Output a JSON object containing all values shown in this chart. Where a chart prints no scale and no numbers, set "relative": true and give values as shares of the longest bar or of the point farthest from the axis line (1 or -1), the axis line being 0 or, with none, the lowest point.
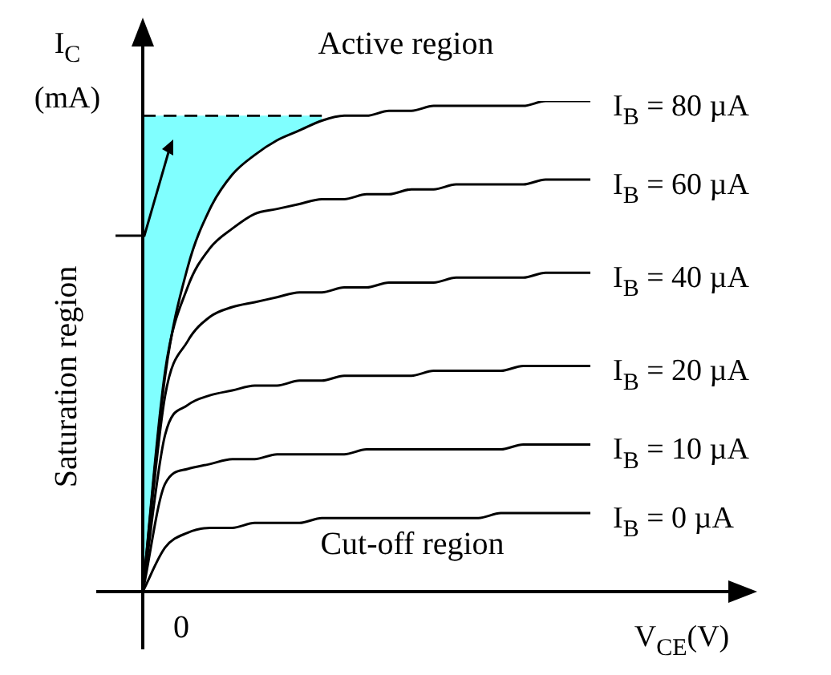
{
  "chart_data": {
    "type": "line",
    "relative": true,
    "xlabel": "V$_{CE}$(V)",
    "ylabel": "I$_{C}$ (mA)",
    "categories": [
      null,
      null,
      null,
      null,
      null,
      null,
      null,
      null,
      null,
      null,
      null,
      null,
      null,
      null,
      null,
      null,
      null,
      null,
      null,
      null,
      null
    ],
    "series": [
      {
        "type": "area",
        "color": "#80ffff",
        "line_style": "dashed",
        "values": [
          0.97,
          0.97,
          0.97,
          0.97,
          0.97,
          0.97,
          0.97,
          0.97,
          0.97,
          null,
          null,
          null,
          null,
          null,
          null,
          null,
          null,
          null,
          null,
          null,
          null
        ]
      },
      {
        "name": "I$_{B}$ = 80 µA",
        "color": "#000000",
        "values": [
          0,
          0.44,
          0.66,
          0.78,
          0.85,
          0.89,
          0.92,
          0.94,
          0.96,
          0.97,
          0.97,
          0.98,
          0.98,
          0.99,
          0.99,
          0.99,
          0.99,
          0.99,
          1,
          1,
          1
        ]
      },
      {
        "name": "I$_{B}$ = 60 µA",
        "color": "#000000",
        "values": [
          0,
          0.45,
          0.62,
          0.7,
          0.74,
          0.77,
          0.78,
          0.79,
          0.8,
          0.8,
          0.81,
          0.81,
          0.82,
          0.82,
          0.83,
          0.83,
          0.83,
          0.83,
          0.84,
          0.84,
          0.84
        ]
      },
      {
        "name": "I$_{B}$ = 40 µA",
        "color": "#000000",
        "values": [
          0,
          0.4,
          0.51,
          0.56,
          0.58,
          0.59,
          0.6,
          0.61,
          0.61,
          0.62,
          0.62,
          0.63,
          0.63,
          0.63,
          0.64,
          0.64,
          0.64,
          0.64,
          0.65,
          0.65,
          0.65
        ]
      },
      {
        "name": "I$_{B}$ = 20 µA",
        "color": "#000000",
        "values": [
          0,
          0.32,
          0.38,
          0.4,
          0.41,
          0.42,
          0.42,
          0.43,
          0.43,
          0.44,
          0.44,
          0.44,
          0.44,
          0.45,
          0.45,
          0.45,
          0.45,
          0.46,
          0.46,
          0.46,
          0.46
        ]
      },
      {
        "name": "I$_{B}$ = 10 µA",
        "color": "#000000",
        "values": [
          0,
          0.22,
          0.25,
          0.26,
          0.27,
          0.27,
          0.28,
          0.28,
          0.28,
          0.28,
          0.29,
          0.29,
          0.29,
          0.29,
          0.29,
          0.29,
          0.29,
          0.3,
          0.3,
          0.3,
          0.3
        ]
      },
      {
        "name": "I$_{B}$ = 0 µA",
        "color": "#000000",
        "values": [
          0,
          0.09,
          0.12,
          0.13,
          0.13,
          0.14,
          0.14,
          0.14,
          0.15,
          0.15,
          0.15,
          0.15,
          0.15,
          0.15,
          0.15,
          0.15,
          0.16,
          0.16,
          0.16,
          0.16,
          0.16
        ]
      }
    ],
    "annotations": [
      "Active region",
      "Cut-off region",
      "Saturation region",
      "0"
    ],
    "legend": false,
    "marker": "none"
  }
}
